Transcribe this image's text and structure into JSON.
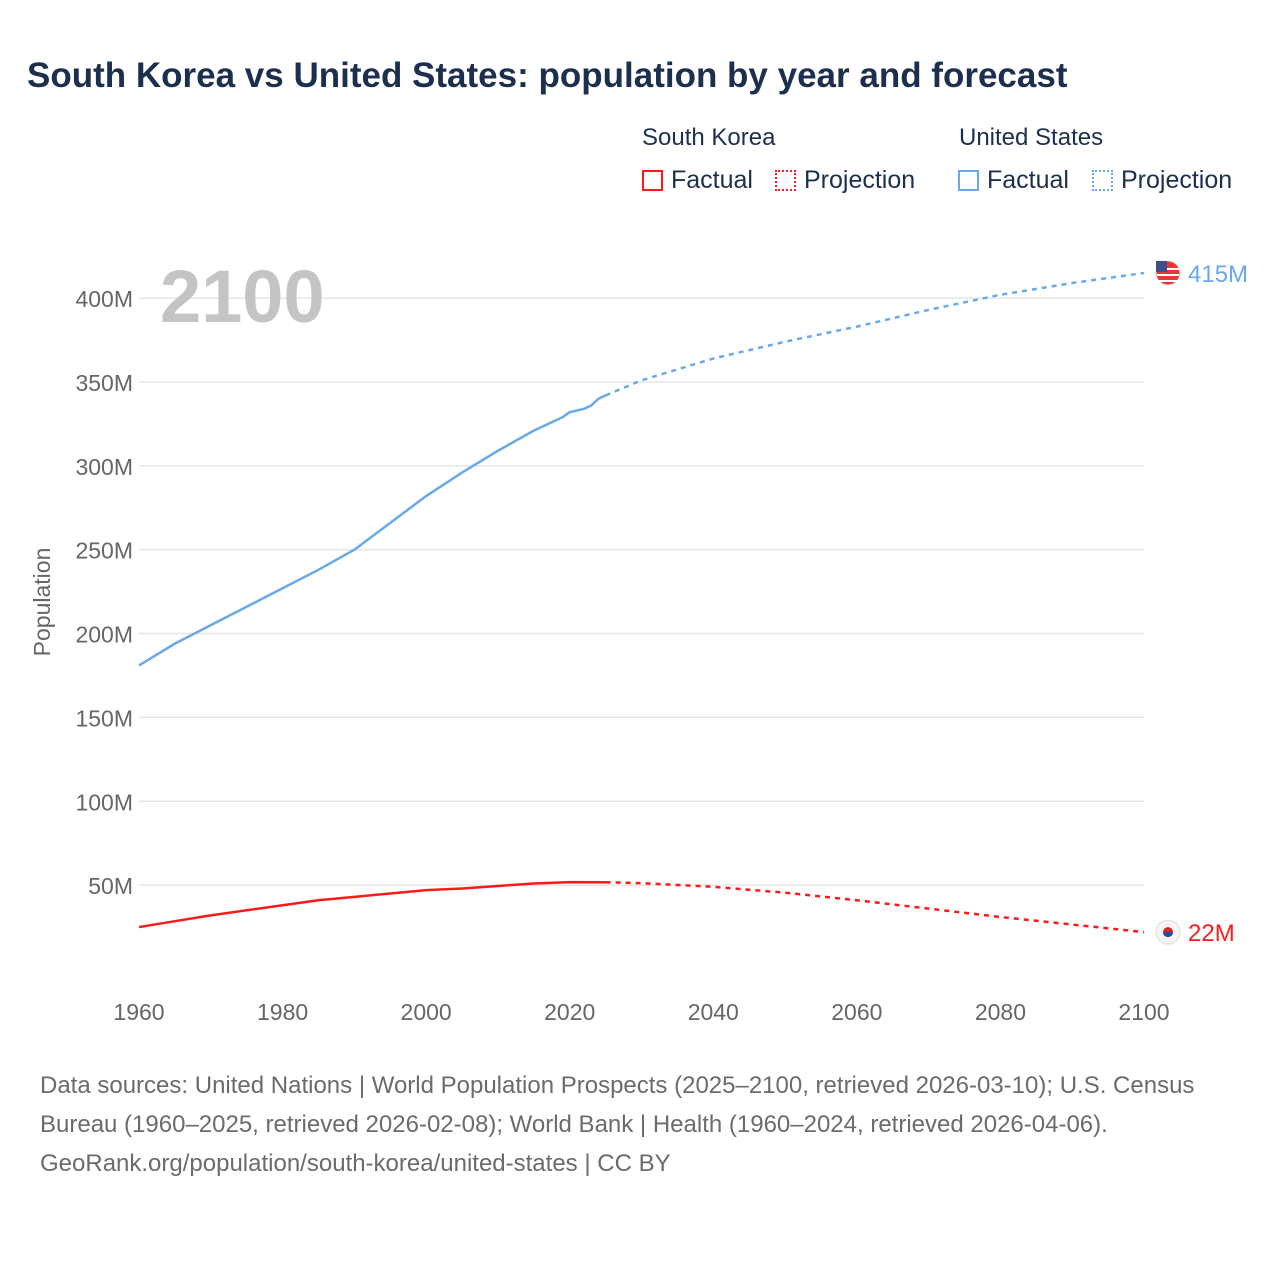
{
  "title": "South Korea vs United States: population by year and forecast",
  "legend": {
    "groups": [
      {
        "name": "South Korea",
        "factual": "Factual",
        "projection": "Projection",
        "color": "#ff1a1a"
      },
      {
        "name": "United States",
        "factual": "Factual",
        "projection": "Projection",
        "color": "#6aa9e9"
      }
    ]
  },
  "chart_data": {
    "type": "line",
    "title": "South Korea vs United States: population by year and forecast",
    "xlabel": "",
    "ylabel": "Population",
    "xlim": [
      1960,
      2100
    ],
    "ylim": [
      0,
      420
    ],
    "x_ticks": [
      "1960",
      "1980",
      "2000",
      "2020",
      "2040",
      "2060",
      "2080",
      "2100"
    ],
    "y_ticks": [
      "50M",
      "100M",
      "150M",
      "200M",
      "250M",
      "300M",
      "350M",
      "400M"
    ],
    "year_label": "2100",
    "grid": true,
    "series": [
      {
        "name": "United States",
        "color": "#6aa9e9",
        "end_label": "415M",
        "factual": [
          [
            1960,
            181
          ],
          [
            1965,
            194
          ],
          [
            1970,
            205
          ],
          [
            1975,
            216
          ],
          [
            1980,
            227
          ],
          [
            1985,
            238
          ],
          [
            1990,
            250
          ],
          [
            1995,
            266
          ],
          [
            2000,
            282
          ],
          [
            2005,
            296
          ],
          [
            2010,
            309
          ],
          [
            2015,
            321
          ],
          [
            2019,
            329
          ],
          [
            2020,
            332
          ],
          [
            2022,
            334
          ],
          [
            2023,
            336
          ],
          [
            2024,
            340
          ],
          [
            2025,
            342
          ]
        ],
        "projection": [
          [
            2025,
            342
          ],
          [
            2030,
            351
          ],
          [
            2040,
            364
          ],
          [
            2050,
            374
          ],
          [
            2060,
            383
          ],
          [
            2070,
            393
          ],
          [
            2080,
            402
          ],
          [
            2090,
            409
          ],
          [
            2100,
            415
          ]
        ]
      },
      {
        "name": "South Korea",
        "color": "#ff1a1a",
        "end_label": "22M",
        "factual": [
          [
            1960,
            25
          ],
          [
            1965,
            28.5
          ],
          [
            1970,
            32
          ],
          [
            1975,
            35
          ],
          [
            1980,
            38
          ],
          [
            1985,
            41
          ],
          [
            1990,
            43
          ],
          [
            1995,
            45
          ],
          [
            2000,
            47
          ],
          [
            2005,
            48
          ],
          [
            2010,
            49.5
          ],
          [
            2015,
            51
          ],
          [
            2020,
            51.8
          ],
          [
            2025,
            51.7
          ]
        ],
        "projection": [
          [
            2025,
            51.7
          ],
          [
            2030,
            51.2
          ],
          [
            2040,
            49
          ],
          [
            2050,
            45.5
          ],
          [
            2060,
            41
          ],
          [
            2070,
            36
          ],
          [
            2080,
            31
          ],
          [
            2090,
            26.5
          ],
          [
            2100,
            22
          ]
        ]
      }
    ]
  },
  "footer": {
    "sources": "Data sources: United Nations | World Population Prospects (2025–2100, retrieved 2026-03-10); U.S. Census Bureau (1960–2025, retrieved 2026-02-08); World Bank | Health (1960–2024, retrieved 2026-04-06).",
    "credit": "GeoRank.org/population/south-korea/united-states | CC BY"
  }
}
